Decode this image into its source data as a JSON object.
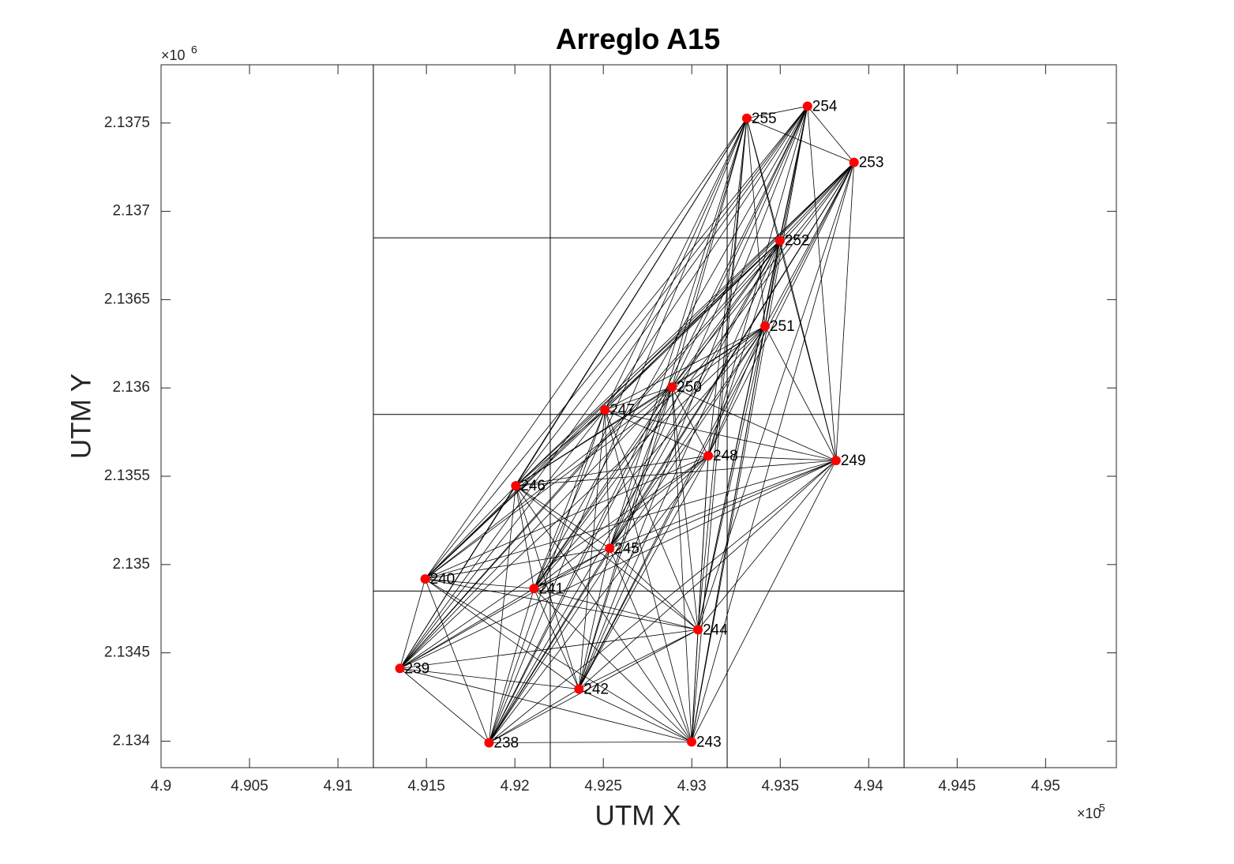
{
  "chart_data": {
    "type": "scatter",
    "title": "Arreglo A15",
    "x_label": "UTM X",
    "y_label": "UTM Y",
    "x_multiplier": "×10",
    "x_exponent": "5",
    "y_multiplier": "×10",
    "y_exponent": "6",
    "labels": [
      "238",
      "239",
      "240",
      "241",
      "242",
      "243",
      "244",
      "245",
      "246",
      "247",
      "248",
      "249",
      "250",
      "251",
      "252",
      "253",
      "254",
      "255"
    ],
    "x": [
      491854,
      491350,
      491493,
      492108,
      492362,
      492999,
      493035,
      492536,
      492005,
      492509,
      493093,
      493815,
      492888,
      493414,
      493498,
      493917,
      493654,
      493311
    ],
    "y": [
      2133991,
      2134412,
      2134918,
      2134864,
      2134295,
      2133996,
      2134631,
      2135092,
      2135446,
      2135876,
      2135616,
      2135589,
      2136005,
      2136350,
      2136834,
      2137277,
      2137595,
      2137527
    ],
    "color": "#ff0000",
    "cell_x": [
      491200,
      492200,
      493200,
      494200
    ],
    "cell_y": [
      2133850,
      2134850,
      2135850,
      2136850,
      2137850
    ],
    "xlim": [
      490000,
      495400
    ],
    "ylim": [
      2133850,
      2137830
    ],
    "xticks": [
      {
        "value": 490000,
        "label": "4.9"
      },
      {
        "value": 490500,
        "label": "4.905"
      },
      {
        "value": 491000,
        "label": "4.91"
      },
      {
        "value": 491500,
        "label": "4.915"
      },
      {
        "value": 492000,
        "label": "4.92"
      },
      {
        "value": 492500,
        "label": "4.925"
      },
      {
        "value": 493000,
        "label": "4.93"
      },
      {
        "value": 493500,
        "label": "4.935"
      },
      {
        "value": 494000,
        "label": "4.94"
      },
      {
        "value": 494500,
        "label": "4.945"
      },
      {
        "value": 495000,
        "label": "4.95"
      }
    ],
    "yticks": [
      {
        "value": 2134000,
        "label": "2.134"
      },
      {
        "value": 2134500,
        "label": "2.1345"
      },
      {
        "value": 2135000,
        "label": "2.135"
      },
      {
        "value": 2135500,
        "label": "2.1355"
      },
      {
        "value": 2136000,
        "label": "2.136"
      },
      {
        "value": 2136500,
        "label": "2.1365"
      },
      {
        "value": 2137000,
        "label": "2.137"
      },
      {
        "value": 2137500,
        "label": "2.1375"
      }
    ]
  }
}
